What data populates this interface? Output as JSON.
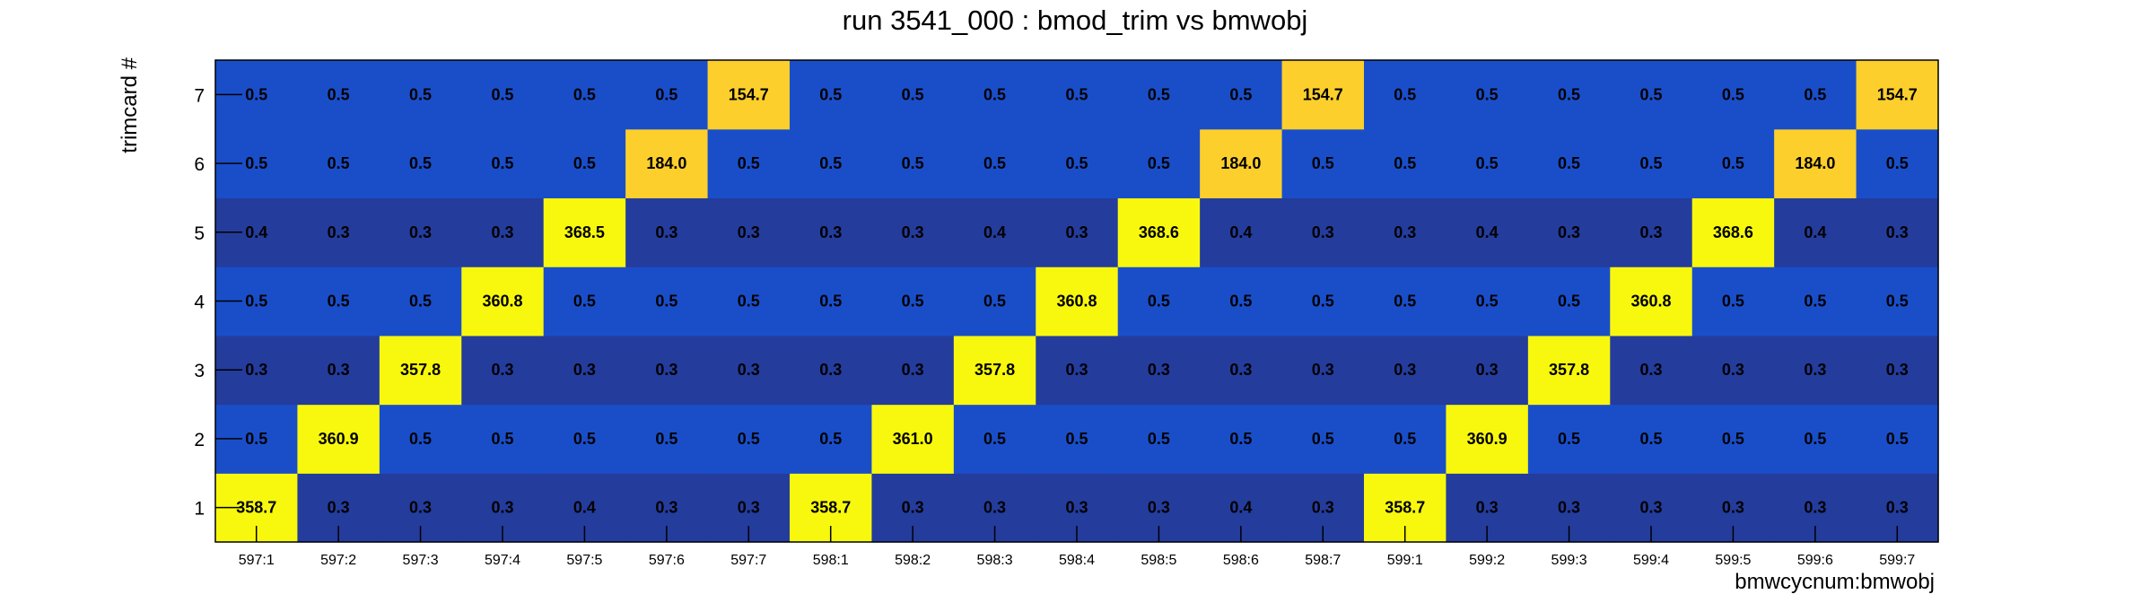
{
  "chart_data": {
    "type": "heatmap",
    "title": "run 3541_000 : bmod_trim vs bmwobj",
    "xlabel": "bmwcycnum:bmwobj",
    "ylabel": "trimcard #",
    "x_categories": [
      "597:1",
      "597:2",
      "597:3",
      "597:4",
      "597:5",
      "597:6",
      "597:7",
      "598:1",
      "598:2",
      "598:3",
      "598:4",
      "598:5",
      "598:6",
      "598:7",
      "599:1",
      "599:2",
      "599:3",
      "599:4",
      "599:5",
      "599:6",
      "599:7"
    ],
    "y_categories": [
      "1",
      "2",
      "3",
      "4",
      "5",
      "6",
      "7"
    ],
    "rows": [
      [
        "358.7",
        "0.3",
        "0.3",
        "0.3",
        "0.4",
        "0.3",
        "0.3",
        "358.7",
        "0.3",
        "0.3",
        "0.3",
        "0.3",
        "0.4",
        "0.3",
        "358.7",
        "0.3",
        "0.3",
        "0.3",
        "0.3",
        "0.3",
        "0.3"
      ],
      [
        "0.5",
        "360.9",
        "0.5",
        "0.5",
        "0.5",
        "0.5",
        "0.5",
        "0.5",
        "361.0",
        "0.5",
        "0.5",
        "0.5",
        "0.5",
        "0.5",
        "0.5",
        "360.9",
        "0.5",
        "0.5",
        "0.5",
        "0.5",
        "0.5"
      ],
      [
        "0.3",
        "0.3",
        "357.8",
        "0.3",
        "0.3",
        "0.3",
        "0.3",
        "0.3",
        "0.3",
        "357.8",
        "0.3",
        "0.3",
        "0.3",
        "0.3",
        "0.3",
        "0.3",
        "357.8",
        "0.3",
        "0.3",
        "0.3",
        "0.3"
      ],
      [
        "0.5",
        "0.5",
        "0.5",
        "360.8",
        "0.5",
        "0.5",
        "0.5",
        "0.5",
        "0.5",
        "0.5",
        "360.8",
        "0.5",
        "0.5",
        "0.5",
        "0.5",
        "0.5",
        "0.5",
        "360.8",
        "0.5",
        "0.5",
        "0.5"
      ],
      [
        "0.4",
        "0.3",
        "0.3",
        "0.3",
        "368.5",
        "0.3",
        "0.3",
        "0.3",
        "0.3",
        "0.4",
        "0.3",
        "368.6",
        "0.4",
        "0.3",
        "0.3",
        "0.4",
        "0.3",
        "0.3",
        "368.6",
        "0.4",
        "0.3"
      ],
      [
        "0.5",
        "0.5",
        "0.5",
        "0.5",
        "0.5",
        "184.0",
        "0.5",
        "0.5",
        "0.5",
        "0.5",
        "0.5",
        "0.5",
        "184.0",
        "0.5",
        "0.5",
        "0.5",
        "0.5",
        "0.5",
        "0.5",
        "184.0",
        "0.5"
      ],
      [
        "0.5",
        "0.5",
        "0.5",
        "0.5",
        "0.5",
        "0.5",
        "154.7",
        "0.5",
        "0.5",
        "0.5",
        "0.5",
        "0.5",
        "0.5",
        "154.7",
        "0.5",
        "0.5",
        "0.5",
        "0.5",
        "0.5",
        "0.5",
        "154.7"
      ]
    ],
    "colors": {
      "low": "#243c9c",
      "mid_low": "#1a4ec9",
      "high_mid": "#fccf2c",
      "high": "#f8f80e",
      "axis": "#000000"
    },
    "grid": false,
    "legend": "none"
  }
}
